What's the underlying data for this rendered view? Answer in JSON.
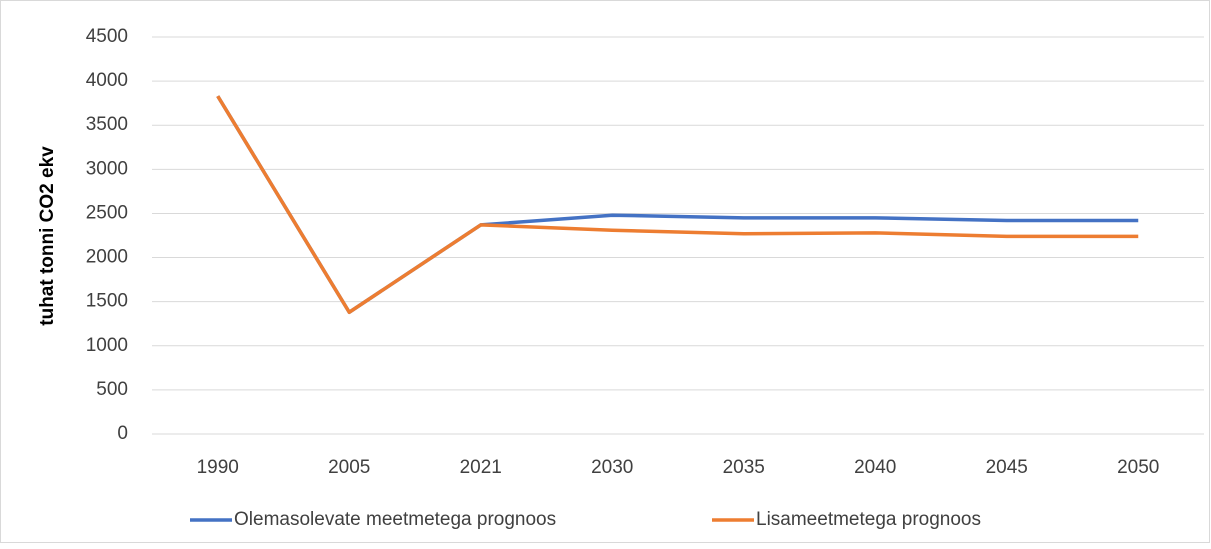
{
  "chart_data": {
    "type": "line",
    "y_label": "tuhat tonni CO2 ekv",
    "categories": [
      "1990",
      "2005",
      "2021",
      "2030",
      "2035",
      "2040",
      "2045",
      "2050"
    ],
    "series": [
      {
        "name": "Olemasolevate meetmetega prognoos",
        "color": "#4472c4",
        "values": [
          3830,
          1380,
          2370,
          2480,
          2450,
          2450,
          2420,
          2420
        ]
      },
      {
        "name": "Lisameetmetega prognoos",
        "color": "#ed7d31",
        "values": [
          3830,
          1380,
          2370,
          2310,
          2270,
          2280,
          2240,
          2240
        ]
      }
    ],
    "ylim": [
      0,
      4500
    ],
    "yticks": [
      0,
      500,
      1000,
      1500,
      2000,
      2500,
      3000,
      3500,
      4000,
      4500
    ],
    "grid": true,
    "legend": "bottom"
  }
}
